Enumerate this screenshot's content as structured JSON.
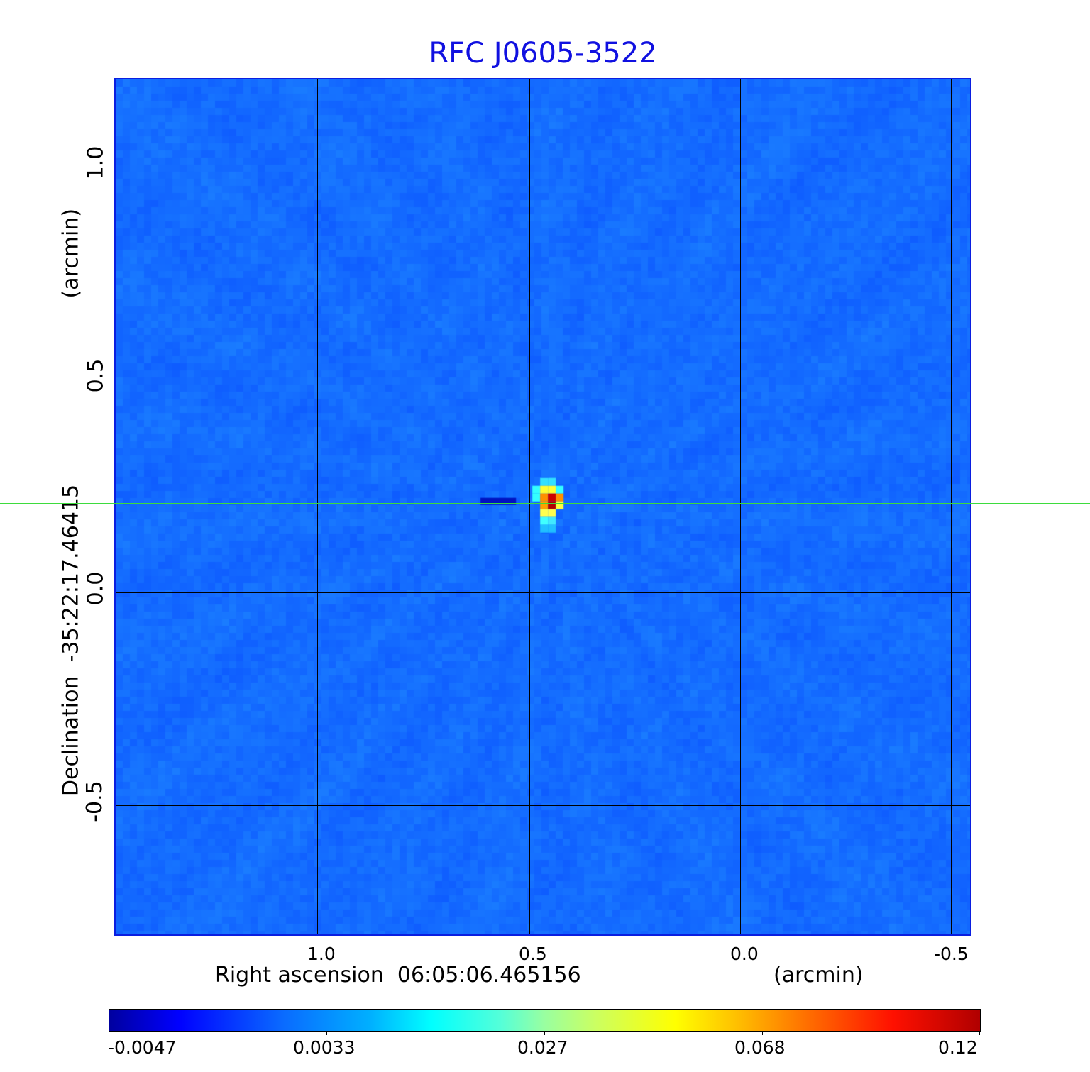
{
  "chart_data": {
    "type": "heatmap",
    "title": "RFC J0605-3522",
    "xlabel": "Right ascension  06:05:06.465156",
    "xunit": "(arcmin)",
    "ylabel": "Declination  -35:22:17.46415",
    "yunit": "(arcmin)",
    "x_ticks": [
      "1.0",
      "0.5",
      "0.0",
      "-0.5"
    ],
    "y_ticks": [
      "1.0",
      "0.5",
      "0.0",
      "-0.5"
    ],
    "x_tick_values": [
      1.0,
      0.5,
      0.0,
      -0.5
    ],
    "y_tick_values": [
      1.0,
      0.5,
      0.0,
      -0.5
    ],
    "xlim": [
      1.48,
      -0.53
    ],
    "ylim": [
      -0.81,
      1.2
    ],
    "grid": true,
    "crosshair": {
      "x": 0.463,
      "y": 0.208,
      "color": "#3ddc3d"
    },
    "peak": {
      "x": 0.463,
      "y": 0.208,
      "value": 0.12
    },
    "colormap": "jet",
    "colorbar": {
      "placement": "bottom",
      "ticks": [
        "-0.0047",
        "0.0033",
        "0.027",
        "0.068",
        "0.12"
      ],
      "range": [
        -0.0047,
        0.12
      ]
    },
    "colors": {
      "title": "#1010e0",
      "frame": "#0a1ee0",
      "background": "#1a6cff"
    }
  }
}
